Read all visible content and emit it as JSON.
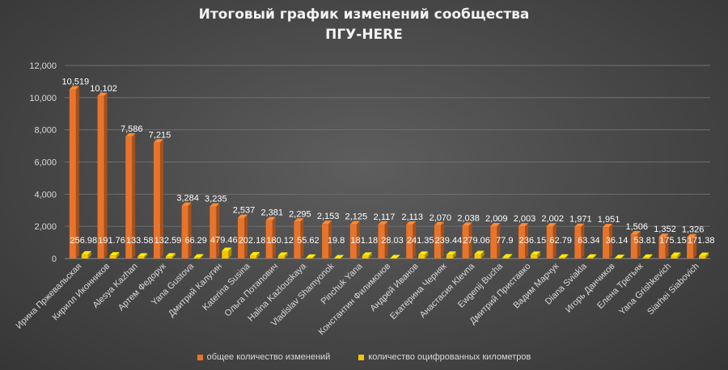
{
  "chart_data": {
    "type": "bar",
    "title": [
      "Итоговый график изменений сообщества",
      "ПГУ-HERE"
    ],
    "ylim": [
      0,
      12000
    ],
    "yticks": [
      "0",
      "2,000",
      "4,000",
      "6,000",
      "8,000",
      "10,000",
      "12,000"
    ],
    "grid": true,
    "legend_position": "bottom",
    "categories": [
      "Ирина Пржевальская",
      "Кирилл Иконников",
      "Alesya Kazhan",
      "Артем Федорук",
      "Yana Gustova",
      "Дмитрий Калугин",
      "Katerina Susina",
      "Ольга Потапович",
      "Halina Kazlouskaya",
      "Vladislav Shamyonok",
      "Pinchuk Yana",
      "Константин Филимонов",
      "Андрей Иванов",
      "Екатерина Черняк",
      "Анастасия Klevna",
      "Ewgenij Bucha",
      "Дмитрий Приставко",
      "Вадим Марчук",
      "Diana Sviakla",
      "Игорь Данчиков",
      "Елена Третьяк",
      "Yana Grishkevich",
      "Siarhei Siabovich"
    ],
    "series": [
      {
        "name": "общее количество изменений",
        "color": "#e8732b",
        "values": [
          10519,
          10102,
          7586,
          7215,
          3284,
          3235,
          2537,
          2381,
          2295,
          2153,
          2125,
          2117,
          2113,
          2070,
          2038,
          2009,
          2003,
          2002,
          1971,
          1951,
          1506,
          1352,
          1326
        ],
        "labels": [
          "10,519",
          "10,102",
          "7,586",
          "7,215",
          "3,284",
          "3,235",
          "2,537",
          "2,381",
          "2,295",
          "2,153",
          "2,125",
          "2,117",
          "2,113",
          "2,070",
          "2,038",
          "2,009",
          "2,003",
          "2,002",
          "1,971",
          "1,951",
          "1,506",
          "1,352",
          "1,326"
        ]
      },
      {
        "name": "количество оцифрованных километров",
        "color": "#f5c400",
        "values": [
          256.98,
          191.76,
          133.58,
          132.59,
          66.29,
          479.46,
          202.18,
          180.12,
          55.62,
          19.8,
          181.18,
          28.03,
          241.35,
          239.44,
          279.06,
          77.9,
          236.15,
          62.79,
          63.34,
          36.14,
          53.81,
          175.15,
          171.38
        ],
        "labels": [
          "256.98",
          "191.76",
          "133.58",
          "132.59",
          "66.29",
          "479.46",
          "202.18",
          "180.12",
          "55.62",
          "19.8",
          "181.18",
          "28.03",
          "241.35",
          "239.44",
          "279.06",
          "77.9",
          "236.15",
          "62.79",
          "63.34",
          "36.14",
          "53.81",
          "175.15",
          "171.38"
        ]
      }
    ]
  }
}
